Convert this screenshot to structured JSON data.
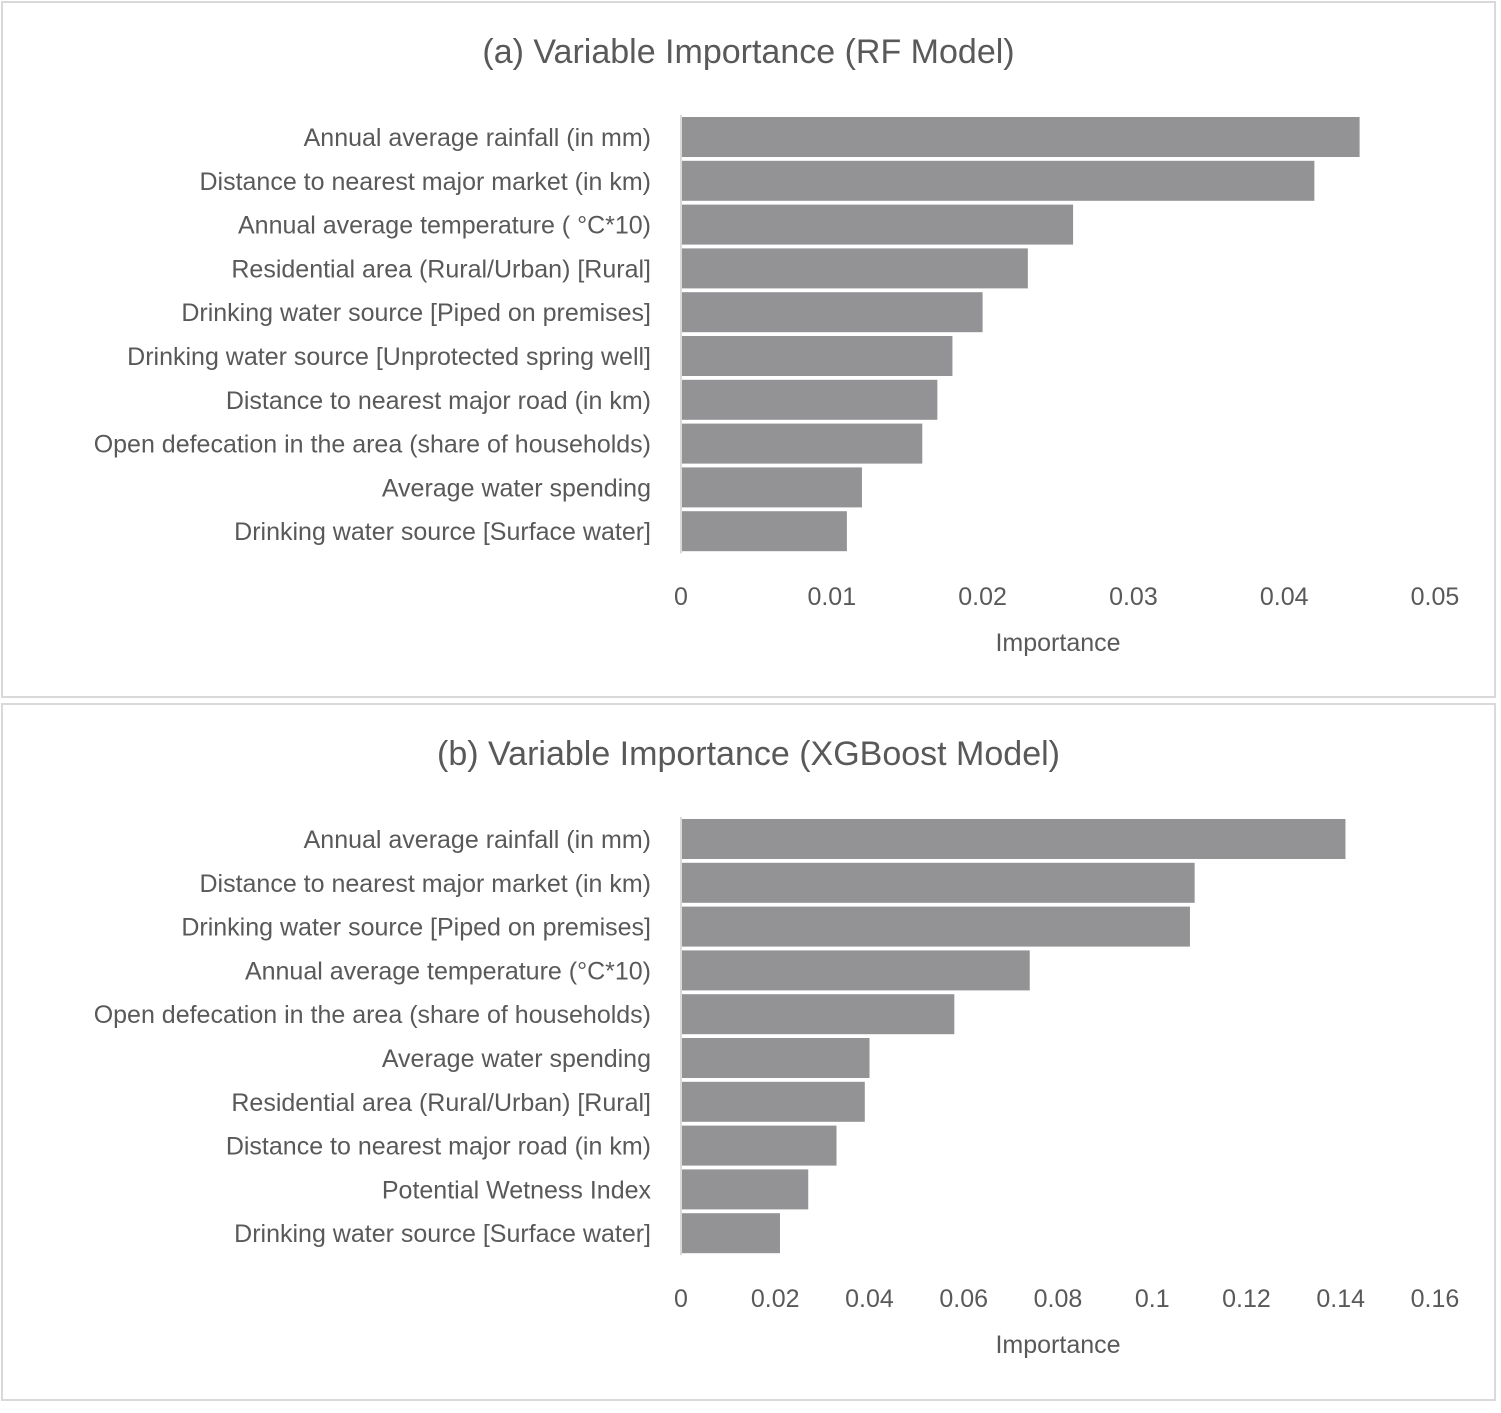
{
  "chart_data": [
    {
      "type": "bar",
      "orientation": "horizontal",
      "title": "(a) Variable Importance (RF Model)",
      "xlabel": "Importance",
      "ylabel": "",
      "xlim": [
        0,
        0.05
      ],
      "xticks": [
        "0",
        "0.01",
        "0.02",
        "0.03",
        "0.04",
        "0.05"
      ],
      "grid": false,
      "bar_color": "#939396",
      "categories": [
        "Annual average rainfall (in mm)",
        "Distance to nearest major market (in km)",
        "Annual average temperature ( °C*10)",
        "Residential area (Rural/Urban) [Rural]",
        "Drinking water source [Piped on premises]",
        "Drinking water source [Unprotected spring well]",
        "Distance to nearest major road (in km)",
        "Open defecation in the area (share of households)",
        "Average water spending",
        "Drinking water source [Surface water]"
      ],
      "values": [
        0.045,
        0.042,
        0.026,
        0.023,
        0.02,
        0.018,
        0.017,
        0.016,
        0.012,
        0.011
      ]
    },
    {
      "type": "bar",
      "orientation": "horizontal",
      "title": "(b) Variable Importance (XGBoost Model)",
      "xlabel": "Importance",
      "ylabel": "",
      "xlim": [
        0,
        0.16
      ],
      "xticks": [
        "0",
        "0.02",
        "0.04",
        "0.06",
        "0.08",
        "0.1",
        "0.12",
        "0.14",
        "0.16"
      ],
      "grid": false,
      "bar_color": "#939396",
      "categories": [
        "Annual average rainfall (in mm)",
        "Distance to nearest major market (in km)",
        "Drinking water source [Piped on premises]",
        "Annual average temperature (°C*10)",
        "Open defecation in the area (share of households)",
        "Average water spending",
        "Residential area (Rural/Urban) [Rural]",
        "Distance to nearest major road (in km)",
        "Potential Wetness Index",
        "Drinking water source [Surface water]"
      ],
      "values": [
        0.141,
        0.109,
        0.108,
        0.074,
        0.058,
        0.04,
        0.039,
        0.033,
        0.027,
        0.021
      ]
    }
  ]
}
